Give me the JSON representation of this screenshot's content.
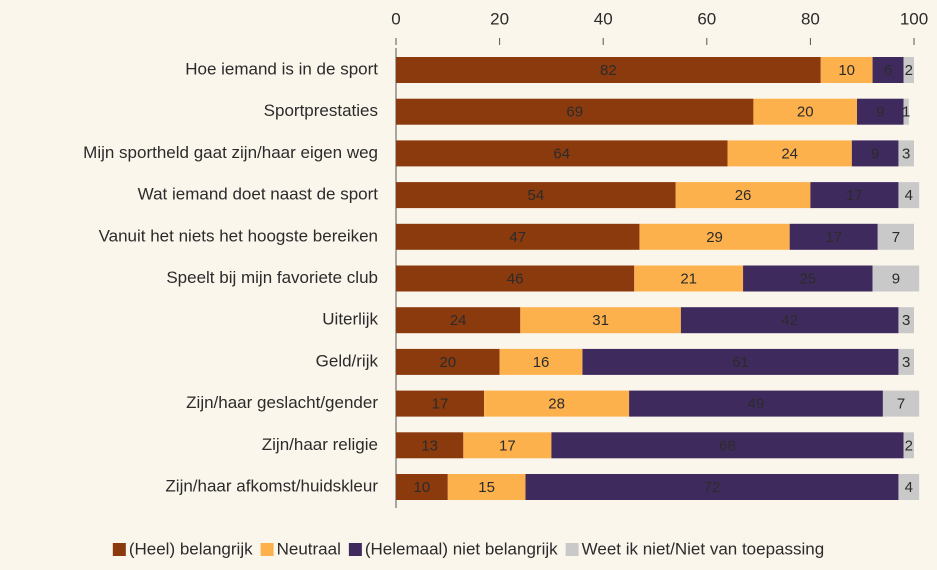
{
  "chart_data": {
    "type": "bar",
    "orientation": "horizontal",
    "stacked": true,
    "categories": [
      "Hoe iemand is in de sport",
      "Sportprestaties",
      "Mijn sportheld gaat zijn/haar eigen weg",
      "Wat iemand doet naast de sport",
      "Vanuit het niets het hoogste bereiken",
      "Speelt bij mijn favoriete club",
      "Uiterlijk",
      "Geld/rijk",
      "Zijn/haar geslacht/gender",
      "Zijn/haar religie",
      "Zijn/haar afkomst/huidskleur"
    ],
    "series": [
      {
        "name": "(Heel) belangrijk",
        "color": "#8b3a0e",
        "values": [
          82,
          69,
          64,
          54,
          47,
          46,
          24,
          20,
          17,
          13,
          10
        ]
      },
      {
        "name": "Neutraal",
        "color": "#fdb14c",
        "values": [
          10,
          20,
          24,
          26,
          29,
          21,
          31,
          16,
          28,
          17,
          15
        ]
      },
      {
        "name": "(Helemaal) niet belangrijk",
        "color": "#3f2a5e",
        "values": [
          6,
          9,
          9,
          17,
          17,
          25,
          42,
          61,
          49,
          68,
          72
        ]
      },
      {
        "name": "Weet ik niet/Niet van toepassing",
        "color": "#c9c9c9",
        "values": [
          2,
          1,
          3,
          4,
          7,
          9,
          3,
          3,
          7,
          2,
          4
        ]
      }
    ],
    "xlim": [
      0,
      100
    ],
    "xticks": [
      0,
      20,
      40,
      60,
      80,
      100
    ],
    "legend": "bottom"
  }
}
